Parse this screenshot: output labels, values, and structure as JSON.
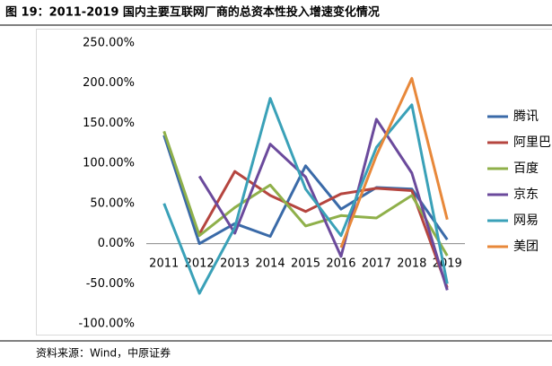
{
  "chart_data": {
    "type": "line",
    "title": "图 19：2011-2019 国内主要互联网厂商的总资本性投入增速变化情况",
    "source": "资料来源：Wind，中原证券",
    "categories": [
      "2011",
      "2012",
      "2013",
      "2014",
      "2015",
      "2016",
      "2017",
      "2018",
      "2019"
    ],
    "series": [
      {
        "name": "腾讯",
        "color": "#3a6aa8",
        "values": [
          135,
          0,
          25,
          9,
          97,
          43,
          70,
          68,
          5
        ]
      },
      {
        "name": "阿里巴巴",
        "color": "#b5453f",
        "values": [
          null,
          12,
          90,
          60,
          40,
          62,
          69,
          66,
          -55
        ]
      },
      {
        "name": "百度",
        "color": "#8fb04a",
        "values": [
          140,
          10,
          45,
          73,
          22,
          35,
          32,
          60,
          -15
        ]
      },
      {
        "name": "京东",
        "color": "#6b4a9c",
        "values": [
          null,
          84,
          13,
          124,
          83,
          -16,
          155,
          88,
          -58
        ]
      },
      {
        "name": "网易",
        "color": "#3aa1b8",
        "values": [
          50,
          -62,
          20,
          181,
          68,
          10,
          120,
          173,
          -50
        ]
      },
      {
        "name": "美团",
        "color": "#e8883a",
        "values": [
          null,
          null,
          null,
          null,
          null,
          -5,
          110,
          206,
          30
        ]
      }
    ],
    "ylim": [
      -100,
      250
    ],
    "yticks": [
      {
        "value": -100,
        "label": "-100.00%"
      },
      {
        "value": -50,
        "label": "-50.00%"
      },
      {
        "value": 0,
        "label": "0.00%"
      },
      {
        "value": 50,
        "label": "50.00%"
      },
      {
        "value": 100,
        "label": "100.00%"
      },
      {
        "value": 150,
        "label": "150.00%"
      },
      {
        "value": 200,
        "label": "200.00%"
      },
      {
        "value": 250,
        "label": "250.00%"
      }
    ],
    "legend": "right"
  }
}
